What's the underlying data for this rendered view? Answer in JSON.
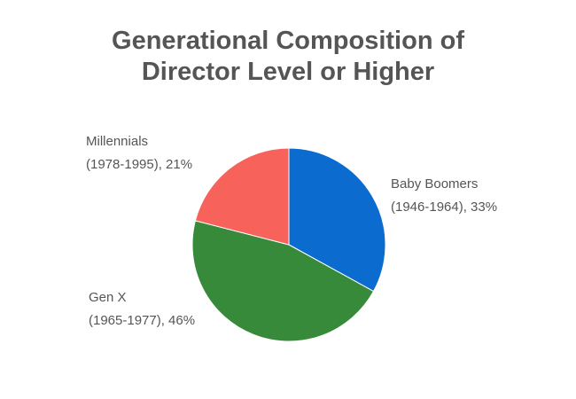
{
  "chart_data": {
    "type": "pie",
    "title": [
      "Generational Composition of",
      "Director Level or Higher"
    ],
    "categories": [
      "Baby Boomers",
      "Gen X",
      "Millennials"
    ],
    "labels": [
      [
        "Baby Boomers",
        "(1946-1964), 33%"
      ],
      [
        "Gen X",
        "(1965-1977), 46%"
      ],
      [
        "Millennials",
        "(1978-1995), 21%"
      ]
    ],
    "values": [
      33,
      46,
      21
    ],
    "colors": [
      "#0b6bcf",
      "#368a3a",
      "#f7625a"
    ]
  }
}
